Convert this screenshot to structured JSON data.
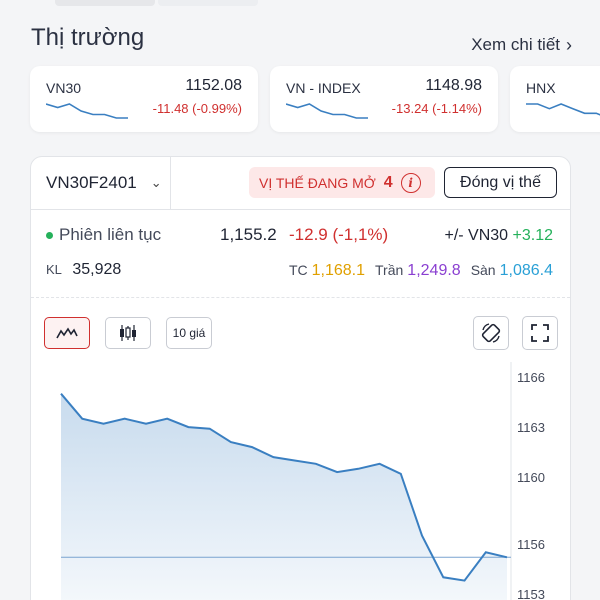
{
  "market": {
    "title": "Thị trường",
    "see_more": "Xem chi tiết",
    "indices": [
      {
        "name": "VN30",
        "value": "1152.08",
        "change": "-11.48 (-0.99%)",
        "spark": [
          5,
          4,
          5,
          3,
          2,
          2,
          1,
          1
        ]
      },
      {
        "name": "VN - INDEX",
        "value": "1148.98",
        "change": "-13.24 (-1.14%)",
        "spark": [
          5,
          4,
          5,
          3,
          2,
          2,
          1,
          1
        ]
      },
      {
        "name": "HNX",
        "value": "",
        "change": "",
        "spark": [
          5,
          5,
          4,
          5,
          4,
          3,
          3,
          2
        ]
      }
    ]
  },
  "contract": {
    "code": "VN30F2401",
    "open_positions_label": "VỊ THẾ ĐANG MỞ",
    "open_positions_count": "4",
    "close_label": "Đóng vị thế"
  },
  "quote": {
    "session": "Phiên liên tục",
    "price": "1,155.2",
    "change": "-12.9 (-1,1%)",
    "basis_label": "+/- VN30",
    "basis_value": "+3.12",
    "volume_label": "KL",
    "volume": "35,928",
    "ref_label": "TC",
    "ref": "1,168.1",
    "ceiling_label": "Trần",
    "ceiling": "1,249.8",
    "floor_label": "Sàn",
    "floor": "1,086.4"
  },
  "toolbar": {
    "ten_price_label": "10 giá"
  },
  "colors": {
    "red": "#d0302f",
    "green": "#25b15b",
    "yellow": "#e0a000",
    "purple": "#8a3fd1",
    "cyan": "#2aa0d6",
    "line": "#3a7fc1"
  },
  "chart_data": {
    "type": "area",
    "y_ticks": [
      "1166",
      "1163",
      "1160",
      "1156",
      "1153"
    ],
    "ylim": [
      1153,
      1166
    ],
    "reference_line": 1155.2,
    "values": [
      1165.0,
      1163.5,
      1163.2,
      1163.5,
      1163.2,
      1163.5,
      1163.0,
      1162.9,
      1162.1,
      1161.8,
      1161.2,
      1161.0,
      1160.8,
      1160.3,
      1160.5,
      1160.8,
      1160.2,
      1156.5,
      1154.0,
      1153.8,
      1155.5,
      1155.2
    ]
  }
}
